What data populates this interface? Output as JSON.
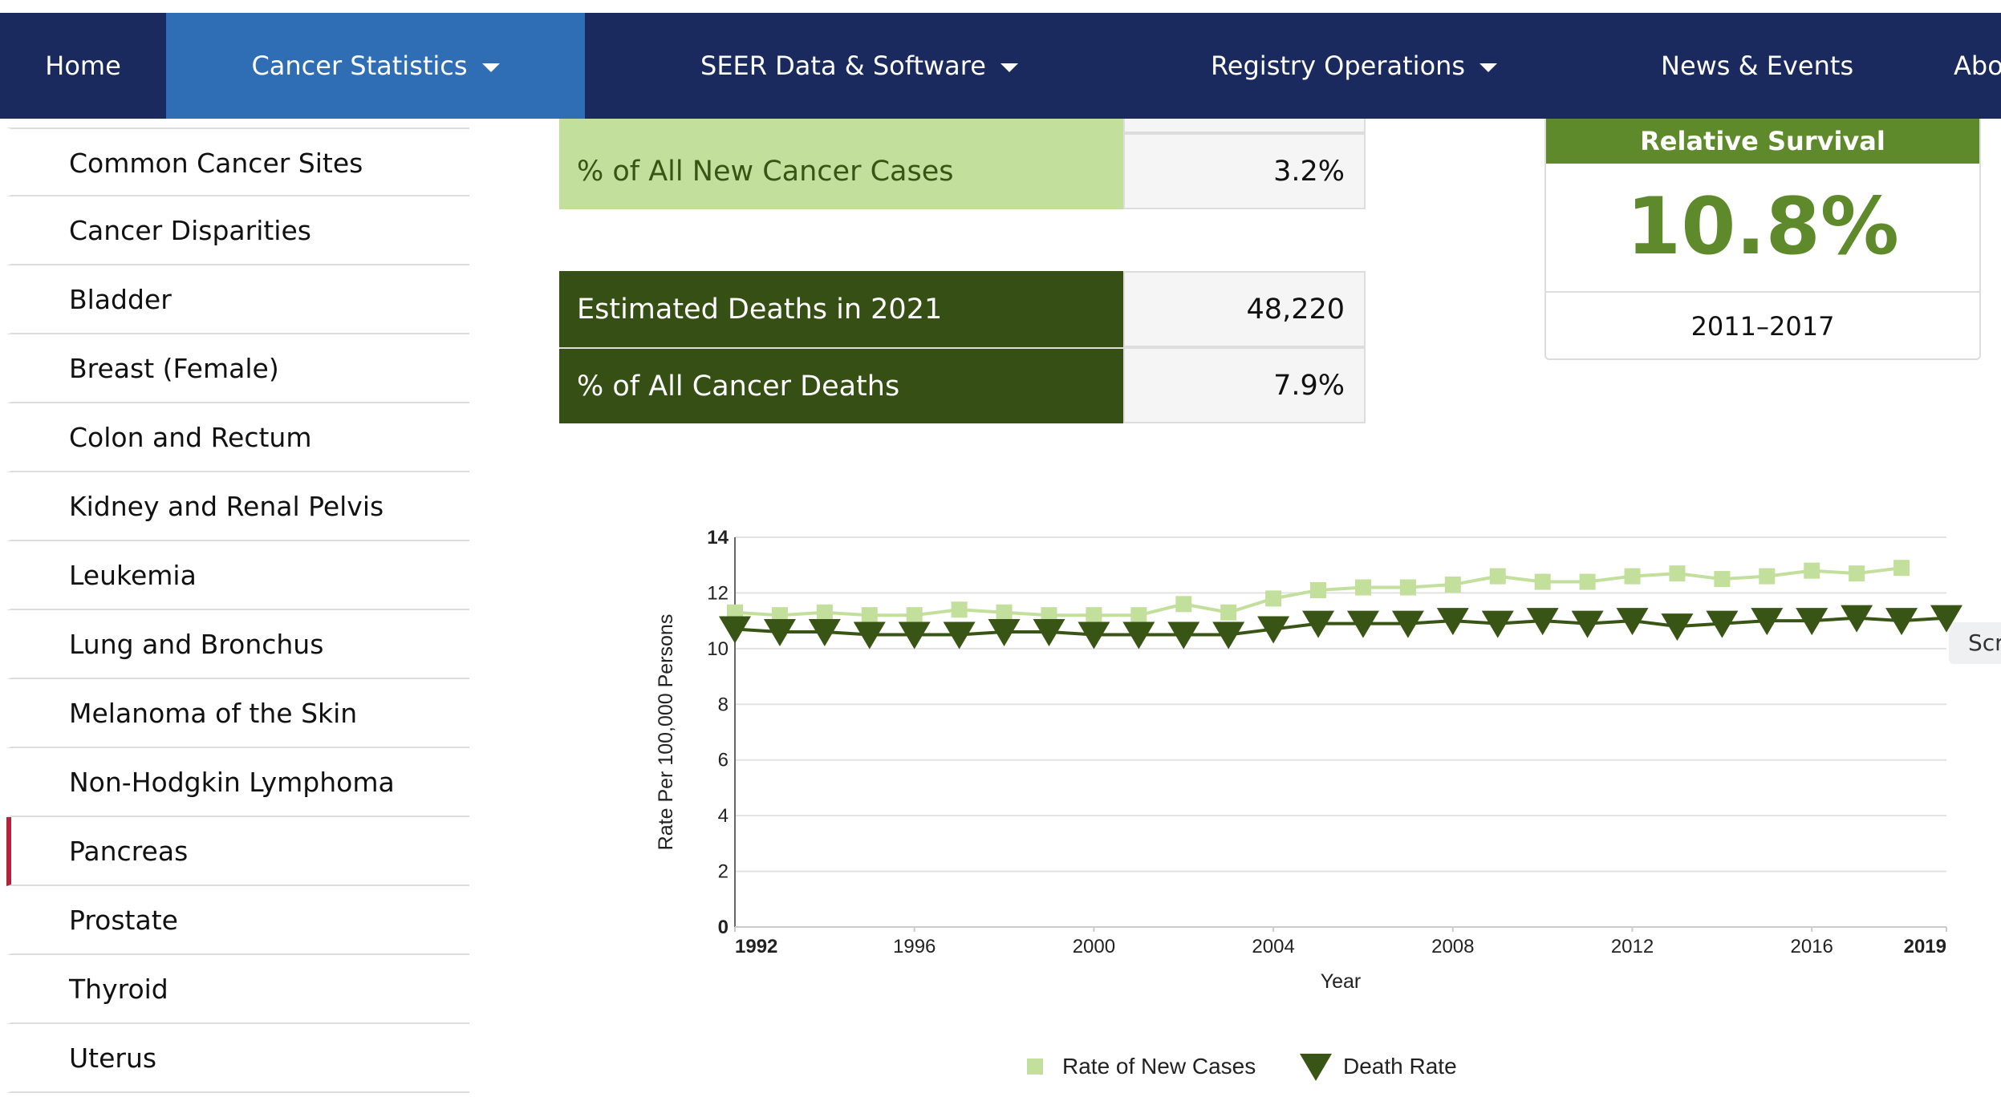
{
  "nav": [
    "Home",
    "Cancer Statistics",
    "SEER Data & Software",
    "Registry Operations",
    "News & Events",
    "Abo"
  ],
  "sidebar": [
    "Common Cancer Sites",
    "Cancer Disparities",
    "Bladder",
    "Breast (Female)",
    "Colon and Rectum",
    "Kidney and Renal Pelvis",
    "Leukemia",
    "Lung and Bronchus",
    "Melanoma of the Skin",
    "Non-Hodgkin Lymphoma",
    "Pancreas",
    "Prostate",
    "Thyroid",
    "Uterus"
  ],
  "new_cases_table": {
    "rows": [
      [
        "% of All New Cancer Cases",
        "3.2%"
      ]
    ]
  },
  "deaths_table": {
    "rows": [
      [
        "Estimated Deaths in 2021",
        "48,220"
      ],
      [
        "% of All Cancer Deaths",
        "7.9%"
      ]
    ]
  },
  "survival": {
    "title": "Relative Survival",
    "value": "10.8%",
    "period": "2011–2017"
  },
  "side_button": "Scr",
  "chart_data": {
    "type": "line",
    "x_label": "Year",
    "y_label": "Rate Per 100,000 Persons",
    "x": [
      1992,
      1993,
      1994,
      1995,
      1996,
      1997,
      1998,
      1999,
      2000,
      2001,
      2002,
      2003,
      2004,
      2005,
      2006,
      2007,
      2008,
      2009,
      2010,
      2011,
      2012,
      2013,
      2014,
      2015,
      2016,
      2017,
      2018,
      2019
    ],
    "xlim": [
      1992,
      2019
    ],
    "xticks": [
      1992,
      1996,
      2000,
      2004,
      2008,
      2012,
      2016,
      2019
    ],
    "ylim": [
      0,
      14
    ],
    "yticks": [
      0,
      2,
      4,
      6,
      8,
      10,
      12,
      14
    ],
    "grid": true,
    "series": [
      {
        "name": "Rate of New Cases",
        "color": "#c2df9b",
        "marker": "square",
        "values": [
          11.3,
          11.2,
          11.3,
          11.2,
          11.2,
          11.4,
          11.3,
          11.2,
          11.2,
          11.2,
          11.6,
          11.3,
          11.8,
          12.1,
          12.2,
          12.2,
          12.3,
          12.6,
          12.4,
          12.4,
          12.6,
          12.7,
          12.5,
          12.6,
          12.8,
          12.7,
          12.9,
          null
        ]
      },
      {
        "name": "Death Rate",
        "color": "#395516",
        "marker": "triangle-down",
        "values": [
          10.7,
          10.6,
          10.6,
          10.5,
          10.5,
          10.5,
          10.6,
          10.6,
          10.5,
          10.5,
          10.5,
          10.5,
          10.7,
          10.9,
          10.9,
          10.9,
          11.0,
          10.9,
          11.0,
          10.9,
          11.0,
          10.8,
          10.9,
          11.0,
          11.0,
          11.1,
          11.0,
          11.1
        ]
      }
    ]
  }
}
